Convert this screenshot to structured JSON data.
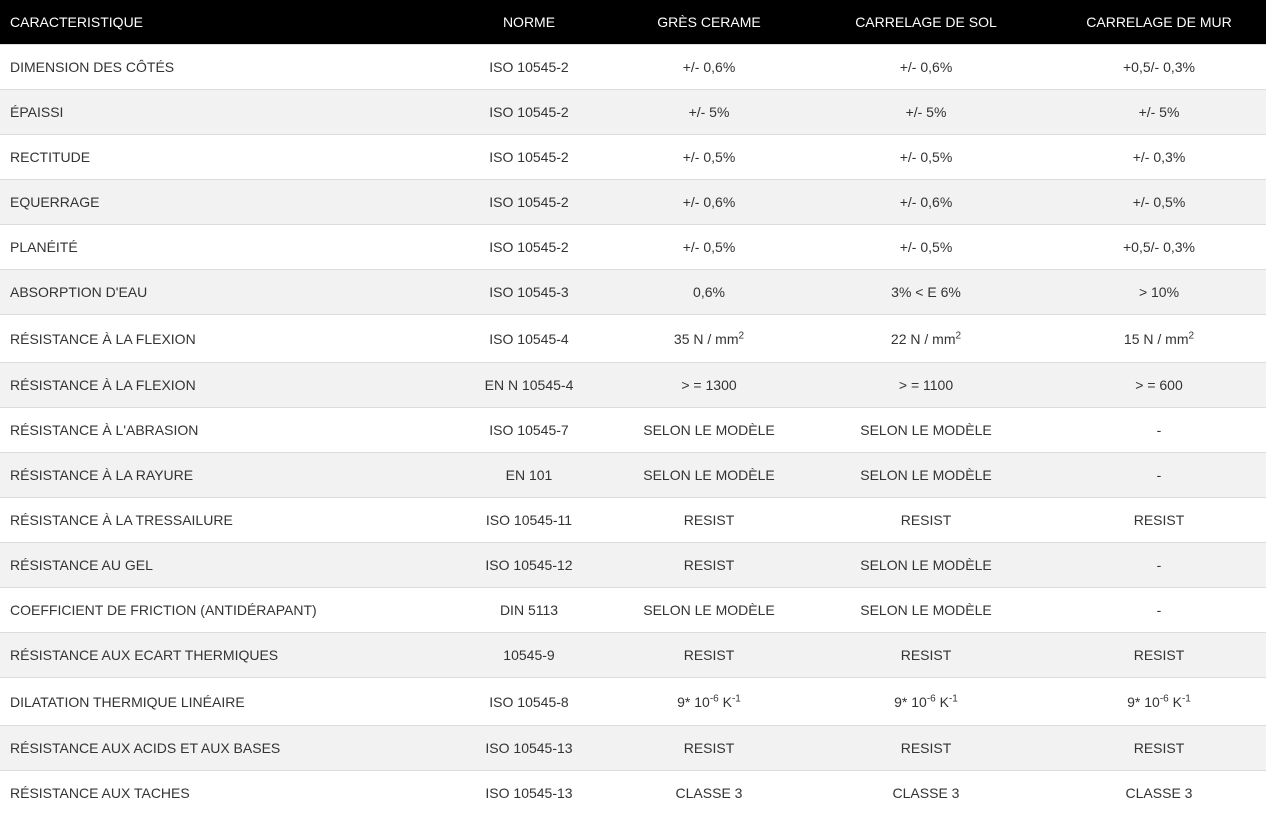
{
  "header": [
    "CARACTERISTIQUE",
    "NORME",
    "GRÈS CERAME",
    "CARRELAGE DE SOL",
    "CARRELAGE DE MUR"
  ],
  "rows": [
    [
      "DIMENSION DES CÔTÉS",
      "ISO 10545-2",
      "+/- 0,6%",
      "+/- 0,6%",
      "+0,5/- 0,3%"
    ],
    [
      "ÉPAISSI",
      "ISO 10545-2",
      "+/- 5%",
      "+/- 5%",
      "+/- 5%"
    ],
    [
      "RECTITUDE",
      "ISO 10545-2",
      "+/- 0,5%",
      "+/- 0,5%",
      "+/- 0,3%"
    ],
    [
      "EQUERRAGE",
      "ISO 10545-2",
      "+/- 0,6%",
      "+/- 0,6%",
      "+/- 0,5%"
    ],
    [
      "PLANÉITÉ",
      "ISO 10545-2",
      "+/- 0,5%",
      "+/- 0,5%",
      "+0,5/- 0,3%"
    ],
    [
      "ABSORPTION D'EAU",
      "ISO 10545-3",
      "0,6%",
      "3% < E 6%",
      "> 10%"
    ],
    [
      "RÉSISTANCE À LA FLEXION",
      "ISO 10545-4",
      [
        [
          "35 N / mm",
          false
        ],
        [
          "2",
          true
        ]
      ],
      [
        [
          "22 N / mm",
          false
        ],
        [
          "2",
          true
        ]
      ],
      [
        [
          "15 N / mm",
          false
        ],
        [
          "2",
          true
        ]
      ]
    ],
    [
      "RÉSISTANCE À LA FLEXION",
      "EN N 10545-4",
      "> = 1300",
      "> = 1100",
      "> = 600"
    ],
    [
      "RÉSISTANCE À L'ABRASION",
      "ISO 10545-7",
      "SELON LE MODÈLE",
      "SELON LE MODÈLE",
      "-"
    ],
    [
      "RÉSISTANCE À LA RAYURE",
      "EN 101",
      "SELON LE MODÈLE",
      "SELON LE MODÈLE",
      "-"
    ],
    [
      "RÉSISTANCE À LA TRESSAILURE",
      "ISO 10545-11",
      "RESIST",
      "RESIST",
      "RESIST"
    ],
    [
      "RÉSISTANCE AU GEL",
      "ISO 10545-12",
      "RESIST",
      "SELON LE MODÈLE",
      "-"
    ],
    [
      "COEFFICIENT DE FRICTION (ANTIDÉRAPANT)",
      "DIN 5113",
      "SELON LE MODÈLE",
      "SELON LE MODÈLE",
      "-"
    ],
    [
      "RÉSISTANCE AUX ECART THERMIQUES",
      "10545-9",
      "RESIST",
      "RESIST",
      "RESIST"
    ],
    [
      "DILATATION THERMIQUE LINÉAIRE",
      "ISO 10545-8",
      [
        [
          "9* 10",
          false
        ],
        [
          "-6",
          true
        ],
        [
          " K",
          false
        ],
        [
          "-1",
          true
        ]
      ],
      [
        [
          "9* 10",
          false
        ],
        [
          "-6",
          true
        ],
        [
          " K",
          false
        ],
        [
          "-1",
          true
        ]
      ],
      [
        [
          "9* 10",
          false
        ],
        [
          "-6",
          true
        ],
        [
          " K",
          false
        ],
        [
          "-1",
          true
        ]
      ]
    ],
    [
      "RÉSISTANCE AUX ACIDS ET AUX BASES",
      "ISO 10545-13",
      "RESIST",
      "RESIST",
      "RESIST"
    ],
    [
      "RÉSISTANCE AUX TACHES",
      "ISO 10545-13",
      "CLASSE 3",
      "CLASSE 3",
      "CLASSE 3"
    ]
  ]
}
